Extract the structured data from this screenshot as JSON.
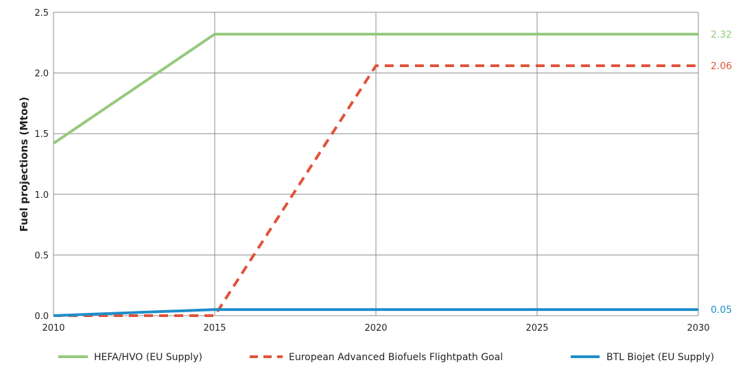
{
  "chart_data": {
    "type": "line",
    "xlabel": "",
    "ylabel": "Fuel projections (Mtoe)",
    "xlim": [
      2010,
      2030
    ],
    "ylim": [
      0,
      2.5
    ],
    "x_ticks": [
      "2010",
      "2015",
      "2020",
      "2025",
      "2030"
    ],
    "y_ticks": [
      "0.0",
      "0.5",
      "1.0",
      "1.5",
      "2.0",
      "2.5"
    ],
    "grid": true,
    "legend_position": "bottom",
    "series": [
      {
        "name": "HEFA/HVO (EU Supply)",
        "color": "#95c97c",
        "style": "solid",
        "x": [
          2010,
          2015,
          2030
        ],
        "y": [
          1.42,
          2.32,
          2.32
        ],
        "end_label": "2.32"
      },
      {
        "name": "European Advanced Biofuels Flightpath Goal",
        "color": "#e0533a",
        "style": "dashed",
        "x": [
          2010,
          2015,
          2020,
          2030
        ],
        "y": [
          0.0,
          0.0,
          2.06,
          2.06
        ],
        "end_label": "2.06"
      },
      {
        "name": "BTL Biojet (EU Supply)",
        "color": "#1e8dc9",
        "style": "solid",
        "x": [
          2010,
          2015,
          2030
        ],
        "y": [
          0.0,
          0.05,
          0.05
        ],
        "end_label": "0.05"
      }
    ]
  }
}
